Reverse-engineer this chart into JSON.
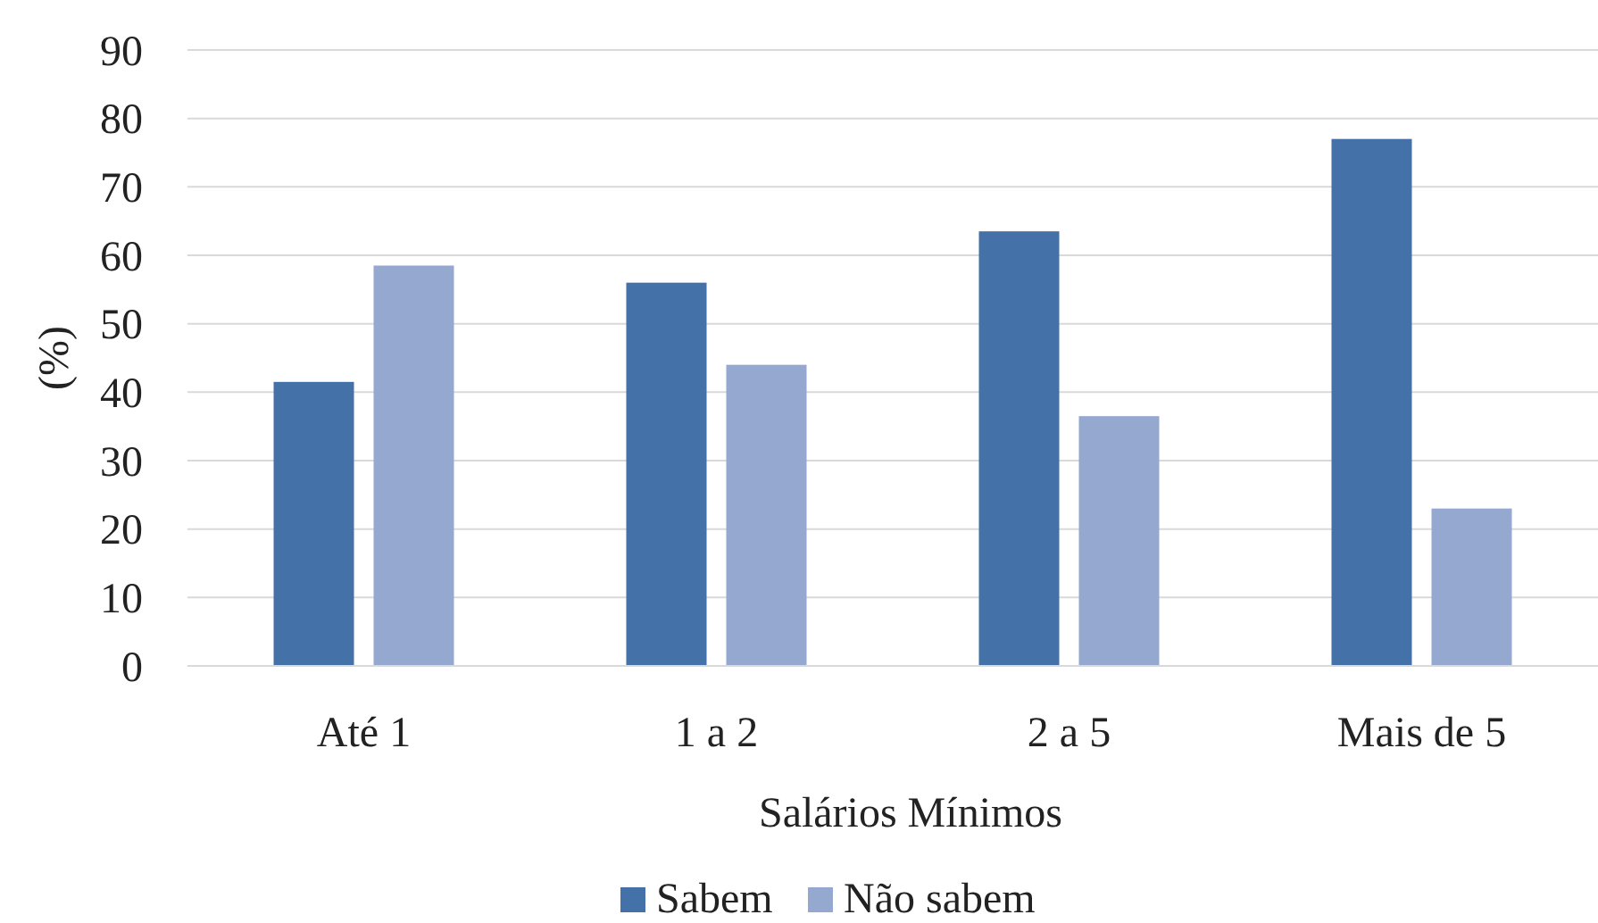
{
  "chart_data": {
    "type": "bar",
    "xlabel": "Salários Mínimos",
    "ylabel": "(%)",
    "categories": [
      "Até 1",
      "1 a 2",
      "2 a 5",
      "Mais de 5"
    ],
    "series": [
      {
        "name": "Sabem",
        "color": "#4472a8",
        "values": [
          41.5,
          56,
          63.5,
          77
        ]
      },
      {
        "name": "Não sabem",
        "color": "#95a9d0",
        "values": [
          58.5,
          44,
          36.5,
          23
        ]
      }
    ],
    "ylim": [
      0,
      90
    ],
    "yticks": [
      0,
      10,
      20,
      30,
      40,
      50,
      60,
      70,
      80,
      90
    ],
    "grid": "y",
    "legend": "bottom"
  }
}
